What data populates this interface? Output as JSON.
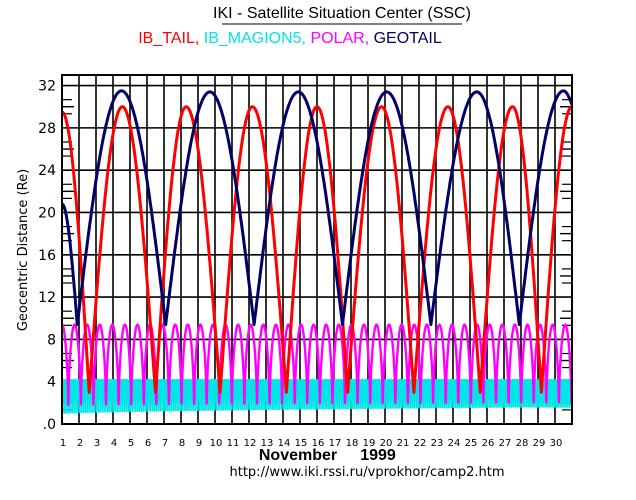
{
  "chart_data": {
    "type": "line",
    "title": "IKI - Satellite Situation Center (SSC)",
    "xlabel": "November",
    "xlabel_year": "1999",
    "ylabel": "Geocentric Distance  (Re)",
    "footer_url": "http://www.iki.rssi.ru/vprokhor/camp2.htm",
    "xlim": [
      1,
      31
    ],
    "ylim": [
      0,
      33
    ],
    "grid": true,
    "x_ticks": [
      "1",
      "2",
      "3",
      "4",
      "5",
      "6",
      "7",
      "8",
      "9",
      "10",
      "11",
      "12",
      "13",
      "14",
      "15",
      "16",
      "17",
      "18",
      "19",
      "20",
      "21",
      "22",
      "23",
      "24",
      "25",
      "26",
      "27",
      "28",
      "29",
      "30"
    ],
    "y_ticks": [
      {
        "value": 0,
        "label": ".0"
      },
      {
        "value": 4,
        "label": "4"
      },
      {
        "value": 8,
        "label": "8"
      },
      {
        "value": 12,
        "label": "12"
      },
      {
        "value": 16,
        "label": "16"
      },
      {
        "value": 20,
        "label": "20"
      },
      {
        "value": 24,
        "label": "24"
      },
      {
        "value": 28,
        "label": "28"
      },
      {
        "value": 32,
        "label": "32"
      }
    ],
    "legend_position": "top-center",
    "series": [
      {
        "name": "IB_TAIL",
        "legend_label": "IB_TAIL,",
        "color": "#ff0000",
        "kind": "extrema",
        "points": [
          [
            1.0,
            29.5
          ],
          [
            2.6,
            3.0
          ],
          [
            4.55,
            30.0
          ],
          [
            6.5,
            3.0
          ],
          [
            8.3,
            30.0
          ],
          [
            10.3,
            3.0
          ],
          [
            12.2,
            30.0
          ],
          [
            14.2,
            3.0
          ],
          [
            16.0,
            30.0
          ],
          [
            17.8,
            3.0
          ],
          [
            19.8,
            30.0
          ],
          [
            21.7,
            3.0
          ],
          [
            23.7,
            30.0
          ],
          [
            25.6,
            3.0
          ],
          [
            27.5,
            30.0
          ],
          [
            29.2,
            3.0
          ],
          [
            31.0,
            30.0
          ]
        ]
      },
      {
        "name": "IB_MAGION5",
        "legend_label": "IB_MAGION5,",
        "color": "#00e5e5",
        "kind": "periodic",
        "period_days": 0.11,
        "min": 1.0,
        "max": 4.2
      },
      {
        "name": "POLAR",
        "legend_label": "POLAR,",
        "color": "#ff00ff",
        "kind": "periodic",
        "period_days": 0.74,
        "min": 1.8,
        "max": 9.4
      },
      {
        "name": "GEOTAIL",
        "legend_label": "GEOTAIL",
        "color": "#000066",
        "kind": "extrema",
        "points": [
          [
            1.0,
            20.8
          ],
          [
            1.9,
            9.4
          ],
          [
            4.5,
            31.5
          ],
          [
            7.1,
            9.4
          ],
          [
            9.7,
            31.4
          ],
          [
            12.3,
            9.4
          ],
          [
            14.9,
            31.4
          ],
          [
            17.5,
            9.4
          ],
          [
            20.1,
            31.4
          ],
          [
            22.7,
            9.4
          ],
          [
            25.4,
            31.4
          ],
          [
            27.9,
            9.4
          ],
          [
            30.5,
            31.5
          ],
          [
            31.0,
            30.2
          ]
        ]
      }
    ]
  }
}
